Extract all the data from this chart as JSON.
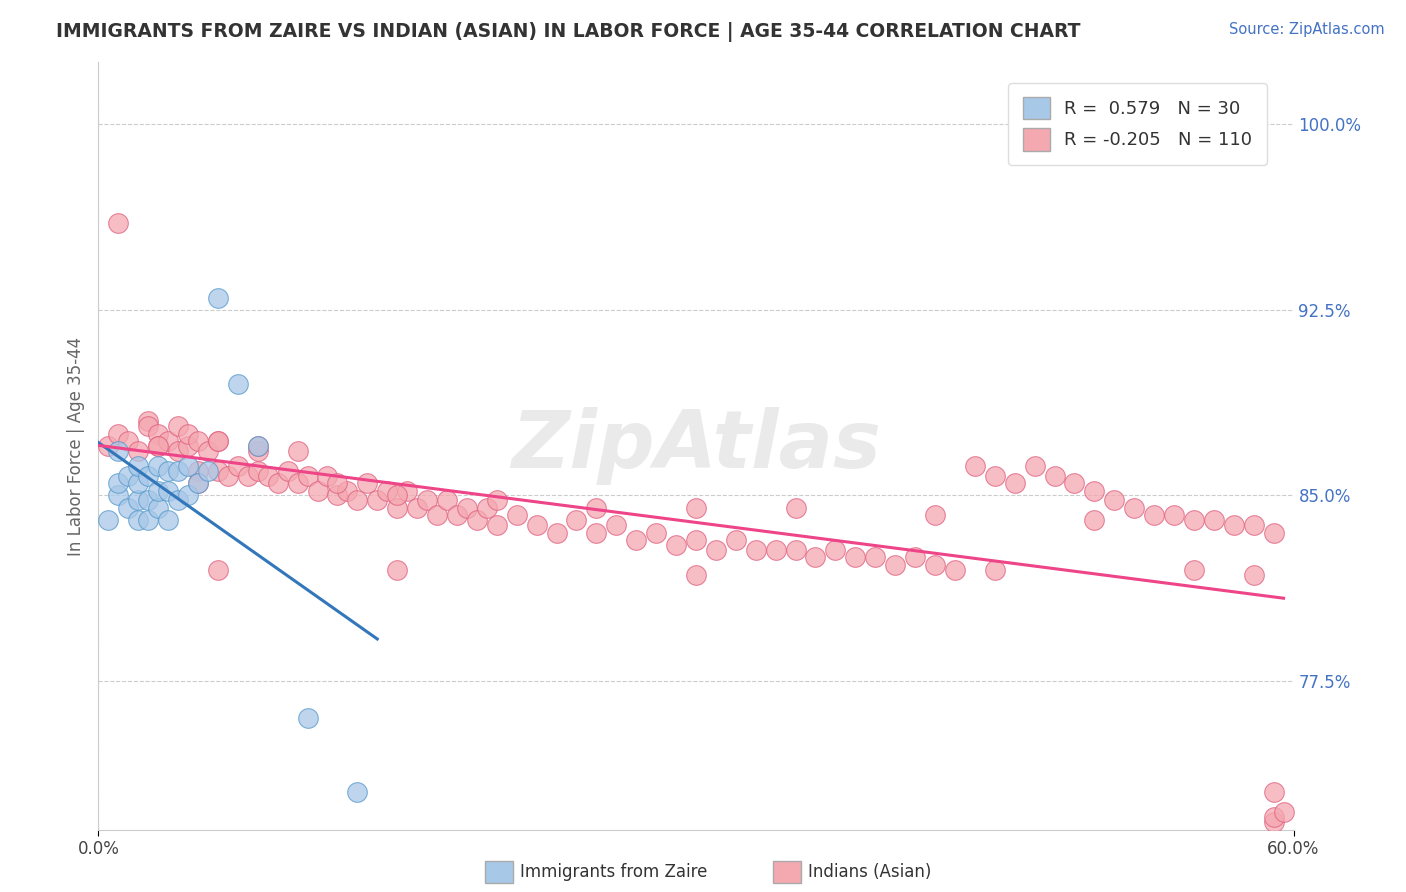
{
  "title": "IMMIGRANTS FROM ZAIRE VS INDIAN (ASIAN) IN LABOR FORCE | AGE 35-44 CORRELATION CHART",
  "source": "Source: ZipAtlas.com",
  "ylabel": "In Labor Force | Age 35-44",
  "xlim": [
    0.0,
    0.6
  ],
  "ylim": [
    0.715,
    1.025
  ],
  "ytick_right_labels": [
    "77.5%",
    "85.0%",
    "92.5%",
    "100.0%"
  ],
  "ytick_right_positions": [
    0.775,
    0.85,
    0.925,
    1.0
  ],
  "R_blue": 0.579,
  "N_blue": 30,
  "R_pink": -0.205,
  "N_pink": 110,
  "legend_label_blue": "Immigrants from Zaire",
  "legend_label_pink": "Indians (Asian)",
  "blue_color": "#a8c8e8",
  "pink_color": "#f4a8b0",
  "blue_edge_color": "#5599cc",
  "pink_edge_color": "#e06080",
  "blue_line_color": "#3377bb",
  "pink_line_color": "#ee4488",
  "watermark": "ZipAtlas",
  "blue_scatter_x": [
    0.005,
    0.01,
    0.01,
    0.01,
    0.015,
    0.015,
    0.02,
    0.02,
    0.02,
    0.02,
    0.025,
    0.025,
    0.025,
    0.03,
    0.03,
    0.03,
    0.035,
    0.035,
    0.035,
    0.04,
    0.04,
    0.045,
    0.045,
    0.05,
    0.055,
    0.06,
    0.07,
    0.08,
    0.105,
    0.13
  ],
  "blue_scatter_y": [
    0.84,
    0.85,
    0.855,
    0.868,
    0.845,
    0.858,
    0.84,
    0.848,
    0.855,
    0.862,
    0.84,
    0.848,
    0.858,
    0.845,
    0.852,
    0.862,
    0.84,
    0.852,
    0.86,
    0.848,
    0.86,
    0.85,
    0.862,
    0.855,
    0.86,
    0.93,
    0.895,
    0.87,
    0.76,
    0.73
  ],
  "pink_scatter_x": [
    0.005,
    0.01,
    0.015,
    0.02,
    0.025,
    0.025,
    0.03,
    0.03,
    0.035,
    0.04,
    0.04,
    0.045,
    0.045,
    0.05,
    0.05,
    0.055,
    0.06,
    0.06,
    0.065,
    0.07,
    0.075,
    0.08,
    0.08,
    0.085,
    0.09,
    0.095,
    0.1,
    0.105,
    0.11,
    0.115,
    0.12,
    0.125,
    0.13,
    0.135,
    0.14,
    0.145,
    0.15,
    0.155,
    0.16,
    0.165,
    0.17,
    0.175,
    0.18,
    0.185,
    0.19,
    0.195,
    0.2,
    0.21,
    0.22,
    0.23,
    0.24,
    0.25,
    0.26,
    0.27,
    0.28,
    0.29,
    0.3,
    0.31,
    0.32,
    0.33,
    0.34,
    0.35,
    0.36,
    0.37,
    0.38,
    0.39,
    0.4,
    0.41,
    0.42,
    0.43,
    0.44,
    0.45,
    0.46,
    0.47,
    0.48,
    0.49,
    0.5,
    0.51,
    0.52,
    0.53,
    0.54,
    0.55,
    0.56,
    0.57,
    0.58,
    0.59,
    0.01,
    0.03,
    0.05,
    0.06,
    0.08,
    0.1,
    0.12,
    0.15,
    0.2,
    0.25,
    0.3,
    0.35,
    0.42,
    0.5,
    0.06,
    0.15,
    0.3,
    0.45,
    0.55,
    0.58,
    0.59,
    0.59,
    0.59,
    0.595
  ],
  "pink_scatter_y": [
    0.87,
    0.875,
    0.872,
    0.868,
    0.88,
    0.878,
    0.875,
    0.87,
    0.872,
    0.868,
    0.878,
    0.87,
    0.875,
    0.86,
    0.872,
    0.868,
    0.86,
    0.872,
    0.858,
    0.862,
    0.858,
    0.86,
    0.868,
    0.858,
    0.855,
    0.86,
    0.855,
    0.858,
    0.852,
    0.858,
    0.85,
    0.852,
    0.848,
    0.855,
    0.848,
    0.852,
    0.845,
    0.852,
    0.845,
    0.848,
    0.842,
    0.848,
    0.842,
    0.845,
    0.84,
    0.845,
    0.838,
    0.842,
    0.838,
    0.835,
    0.84,
    0.835,
    0.838,
    0.832,
    0.835,
    0.83,
    0.832,
    0.828,
    0.832,
    0.828,
    0.828,
    0.828,
    0.825,
    0.828,
    0.825,
    0.825,
    0.822,
    0.825,
    0.822,
    0.82,
    0.862,
    0.858,
    0.855,
    0.862,
    0.858,
    0.855,
    0.852,
    0.848,
    0.845,
    0.842,
    0.842,
    0.84,
    0.84,
    0.838,
    0.838,
    0.835,
    0.96,
    0.87,
    0.855,
    0.872,
    0.87,
    0.868,
    0.855,
    0.85,
    0.848,
    0.845,
    0.845,
    0.845,
    0.842,
    0.84,
    0.82,
    0.82,
    0.818,
    0.82,
    0.82,
    0.818,
    0.73,
    0.718,
    0.72,
    0.722
  ]
}
